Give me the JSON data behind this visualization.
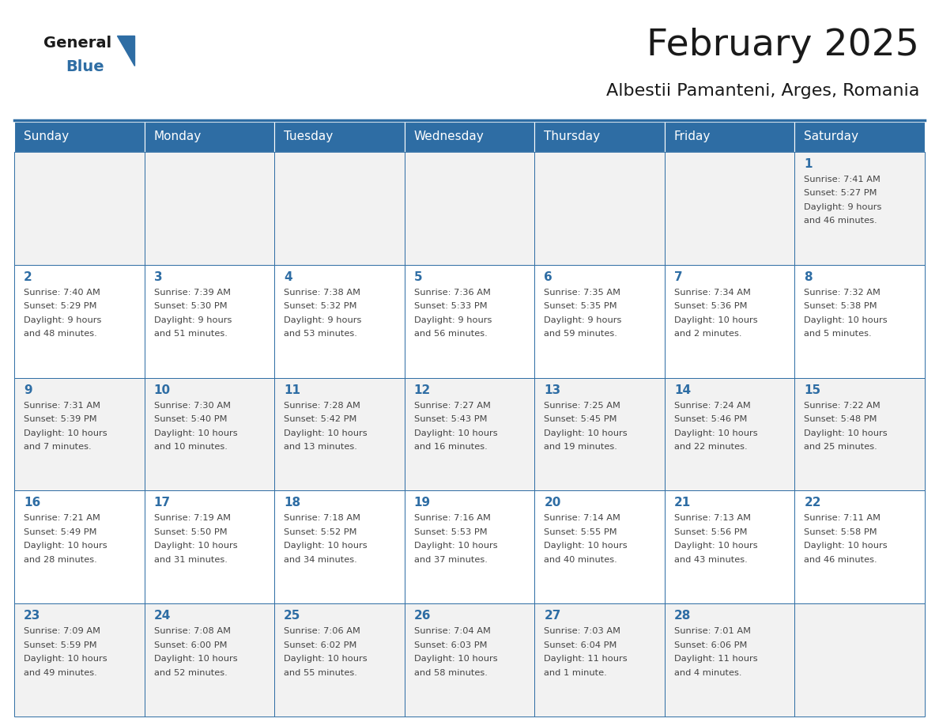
{
  "title": "February 2025",
  "subtitle": "Albestii Pamanteni, Arges, Romania",
  "days_of_week": [
    "Sunday",
    "Monday",
    "Tuesday",
    "Wednesday",
    "Thursday",
    "Friday",
    "Saturday"
  ],
  "header_bg": "#2E6DA4",
  "header_text": "#FFFFFF",
  "cell_bg_odd": "#F2F2F2",
  "cell_bg_even": "#FFFFFF",
  "border_color": "#2E6DA4",
  "day_num_color": "#2E6DA4",
  "text_color": "#444444",
  "title_color": "#1a1a1a",
  "logo_general_color": "#1a1a1a",
  "logo_blue_color": "#2E6DA4",
  "logo_triangle_color": "#2E6DA4",
  "weeks": [
    {
      "days": [
        {
          "date": "",
          "info": ""
        },
        {
          "date": "",
          "info": ""
        },
        {
          "date": "",
          "info": ""
        },
        {
          "date": "",
          "info": ""
        },
        {
          "date": "",
          "info": ""
        },
        {
          "date": "",
          "info": ""
        },
        {
          "date": "1",
          "info": "Sunrise: 7:41 AM\nSunset: 5:27 PM\nDaylight: 9 hours\nand 46 minutes."
        }
      ]
    },
    {
      "days": [
        {
          "date": "2",
          "info": "Sunrise: 7:40 AM\nSunset: 5:29 PM\nDaylight: 9 hours\nand 48 minutes."
        },
        {
          "date": "3",
          "info": "Sunrise: 7:39 AM\nSunset: 5:30 PM\nDaylight: 9 hours\nand 51 minutes."
        },
        {
          "date": "4",
          "info": "Sunrise: 7:38 AM\nSunset: 5:32 PM\nDaylight: 9 hours\nand 53 minutes."
        },
        {
          "date": "5",
          "info": "Sunrise: 7:36 AM\nSunset: 5:33 PM\nDaylight: 9 hours\nand 56 minutes."
        },
        {
          "date": "6",
          "info": "Sunrise: 7:35 AM\nSunset: 5:35 PM\nDaylight: 9 hours\nand 59 minutes."
        },
        {
          "date": "7",
          "info": "Sunrise: 7:34 AM\nSunset: 5:36 PM\nDaylight: 10 hours\nand 2 minutes."
        },
        {
          "date": "8",
          "info": "Sunrise: 7:32 AM\nSunset: 5:38 PM\nDaylight: 10 hours\nand 5 minutes."
        }
      ]
    },
    {
      "days": [
        {
          "date": "9",
          "info": "Sunrise: 7:31 AM\nSunset: 5:39 PM\nDaylight: 10 hours\nand 7 minutes."
        },
        {
          "date": "10",
          "info": "Sunrise: 7:30 AM\nSunset: 5:40 PM\nDaylight: 10 hours\nand 10 minutes."
        },
        {
          "date": "11",
          "info": "Sunrise: 7:28 AM\nSunset: 5:42 PM\nDaylight: 10 hours\nand 13 minutes."
        },
        {
          "date": "12",
          "info": "Sunrise: 7:27 AM\nSunset: 5:43 PM\nDaylight: 10 hours\nand 16 minutes."
        },
        {
          "date": "13",
          "info": "Sunrise: 7:25 AM\nSunset: 5:45 PM\nDaylight: 10 hours\nand 19 minutes."
        },
        {
          "date": "14",
          "info": "Sunrise: 7:24 AM\nSunset: 5:46 PM\nDaylight: 10 hours\nand 22 minutes."
        },
        {
          "date": "15",
          "info": "Sunrise: 7:22 AM\nSunset: 5:48 PM\nDaylight: 10 hours\nand 25 minutes."
        }
      ]
    },
    {
      "days": [
        {
          "date": "16",
          "info": "Sunrise: 7:21 AM\nSunset: 5:49 PM\nDaylight: 10 hours\nand 28 minutes."
        },
        {
          "date": "17",
          "info": "Sunrise: 7:19 AM\nSunset: 5:50 PM\nDaylight: 10 hours\nand 31 minutes."
        },
        {
          "date": "18",
          "info": "Sunrise: 7:18 AM\nSunset: 5:52 PM\nDaylight: 10 hours\nand 34 minutes."
        },
        {
          "date": "19",
          "info": "Sunrise: 7:16 AM\nSunset: 5:53 PM\nDaylight: 10 hours\nand 37 minutes."
        },
        {
          "date": "20",
          "info": "Sunrise: 7:14 AM\nSunset: 5:55 PM\nDaylight: 10 hours\nand 40 minutes."
        },
        {
          "date": "21",
          "info": "Sunrise: 7:13 AM\nSunset: 5:56 PM\nDaylight: 10 hours\nand 43 minutes."
        },
        {
          "date": "22",
          "info": "Sunrise: 7:11 AM\nSunset: 5:58 PM\nDaylight: 10 hours\nand 46 minutes."
        }
      ]
    },
    {
      "days": [
        {
          "date": "23",
          "info": "Sunrise: 7:09 AM\nSunset: 5:59 PM\nDaylight: 10 hours\nand 49 minutes."
        },
        {
          "date": "24",
          "info": "Sunrise: 7:08 AM\nSunset: 6:00 PM\nDaylight: 10 hours\nand 52 minutes."
        },
        {
          "date": "25",
          "info": "Sunrise: 7:06 AM\nSunset: 6:02 PM\nDaylight: 10 hours\nand 55 minutes."
        },
        {
          "date": "26",
          "info": "Sunrise: 7:04 AM\nSunset: 6:03 PM\nDaylight: 10 hours\nand 58 minutes."
        },
        {
          "date": "27",
          "info": "Sunrise: 7:03 AM\nSunset: 6:04 PM\nDaylight: 11 hours\nand 1 minute."
        },
        {
          "date": "28",
          "info": "Sunrise: 7:01 AM\nSunset: 6:06 PM\nDaylight: 11 hours\nand 4 minutes."
        },
        {
          "date": "",
          "info": ""
        }
      ]
    }
  ]
}
